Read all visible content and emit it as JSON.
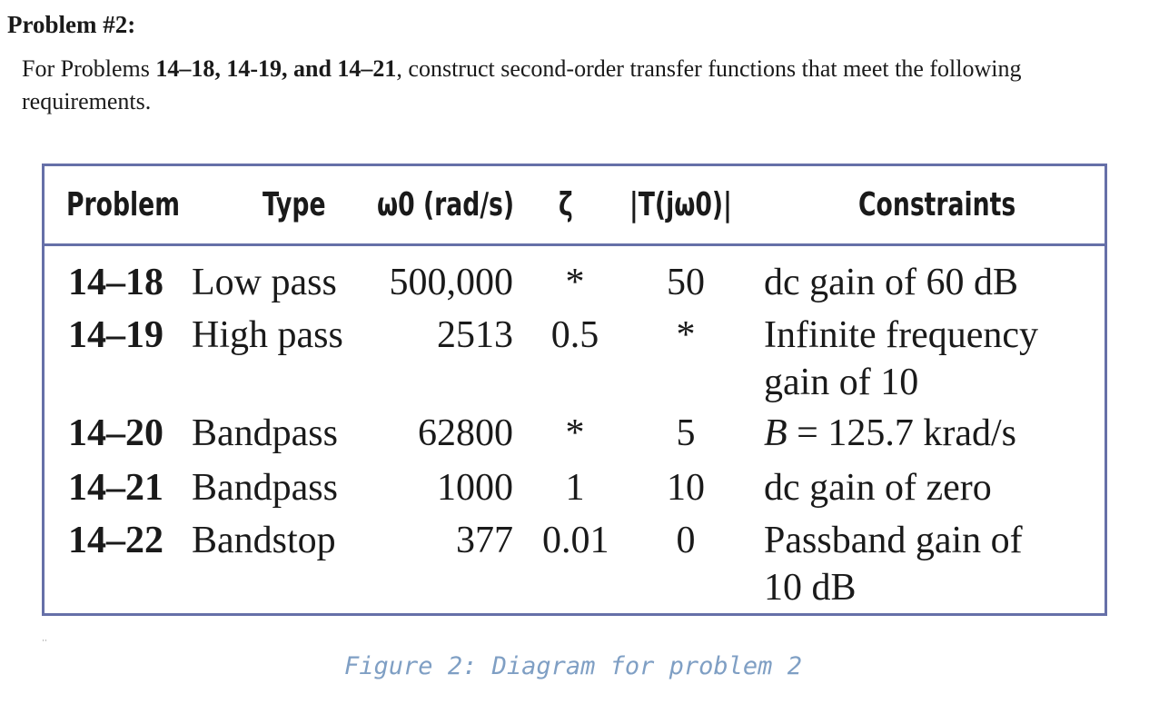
{
  "heading": "Problem #2:",
  "intro": {
    "before": "For Problems ",
    "bold": "14–18, 14-19, and 14–21",
    "after": ", construct second-order transfer functions that meet the following requirements."
  },
  "table": {
    "headers": {
      "problem": "Problem",
      "type": "Type",
      "omega": "ω0 (rad/s)",
      "zeta": "ζ",
      "magnitude": "|T(jω0)|",
      "constraints": "Constraints"
    },
    "rows": [
      {
        "problem": "14–18",
        "type": "Low pass",
        "omega": "500,000",
        "zeta": "*",
        "magnitude": "50",
        "constraints_line1": "dc gain of 60 dB",
        "constraints_line2": ""
      },
      {
        "problem": "14–19",
        "type": "High pass",
        "omega": "2513",
        "zeta": "0.5",
        "magnitude": "*",
        "constraints_line1": "Infinite frequency",
        "constraints_line2": "gain of 10"
      },
      {
        "problem": "14–20",
        "type": "Bandpass",
        "omega": "62800",
        "zeta": "*",
        "magnitude": "5",
        "constraints_italic": "B",
        "constraints_line1": " = 125.7 krad/s",
        "constraints_line2": ""
      },
      {
        "problem": "14–21",
        "type": "Bandpass",
        "omega": "1000",
        "zeta": "1",
        "magnitude": "10",
        "constraints_line1": "dc gain of zero",
        "constraints_line2": ""
      },
      {
        "problem": "14–22",
        "type": "Bandstop",
        "omega": "377",
        "zeta": "0.01",
        "magnitude": "0",
        "constraints_line1": "Passband gain of",
        "constraints_line2": "10 dB"
      }
    ]
  },
  "caption": "Figure 2: Diagram for problem 2"
}
